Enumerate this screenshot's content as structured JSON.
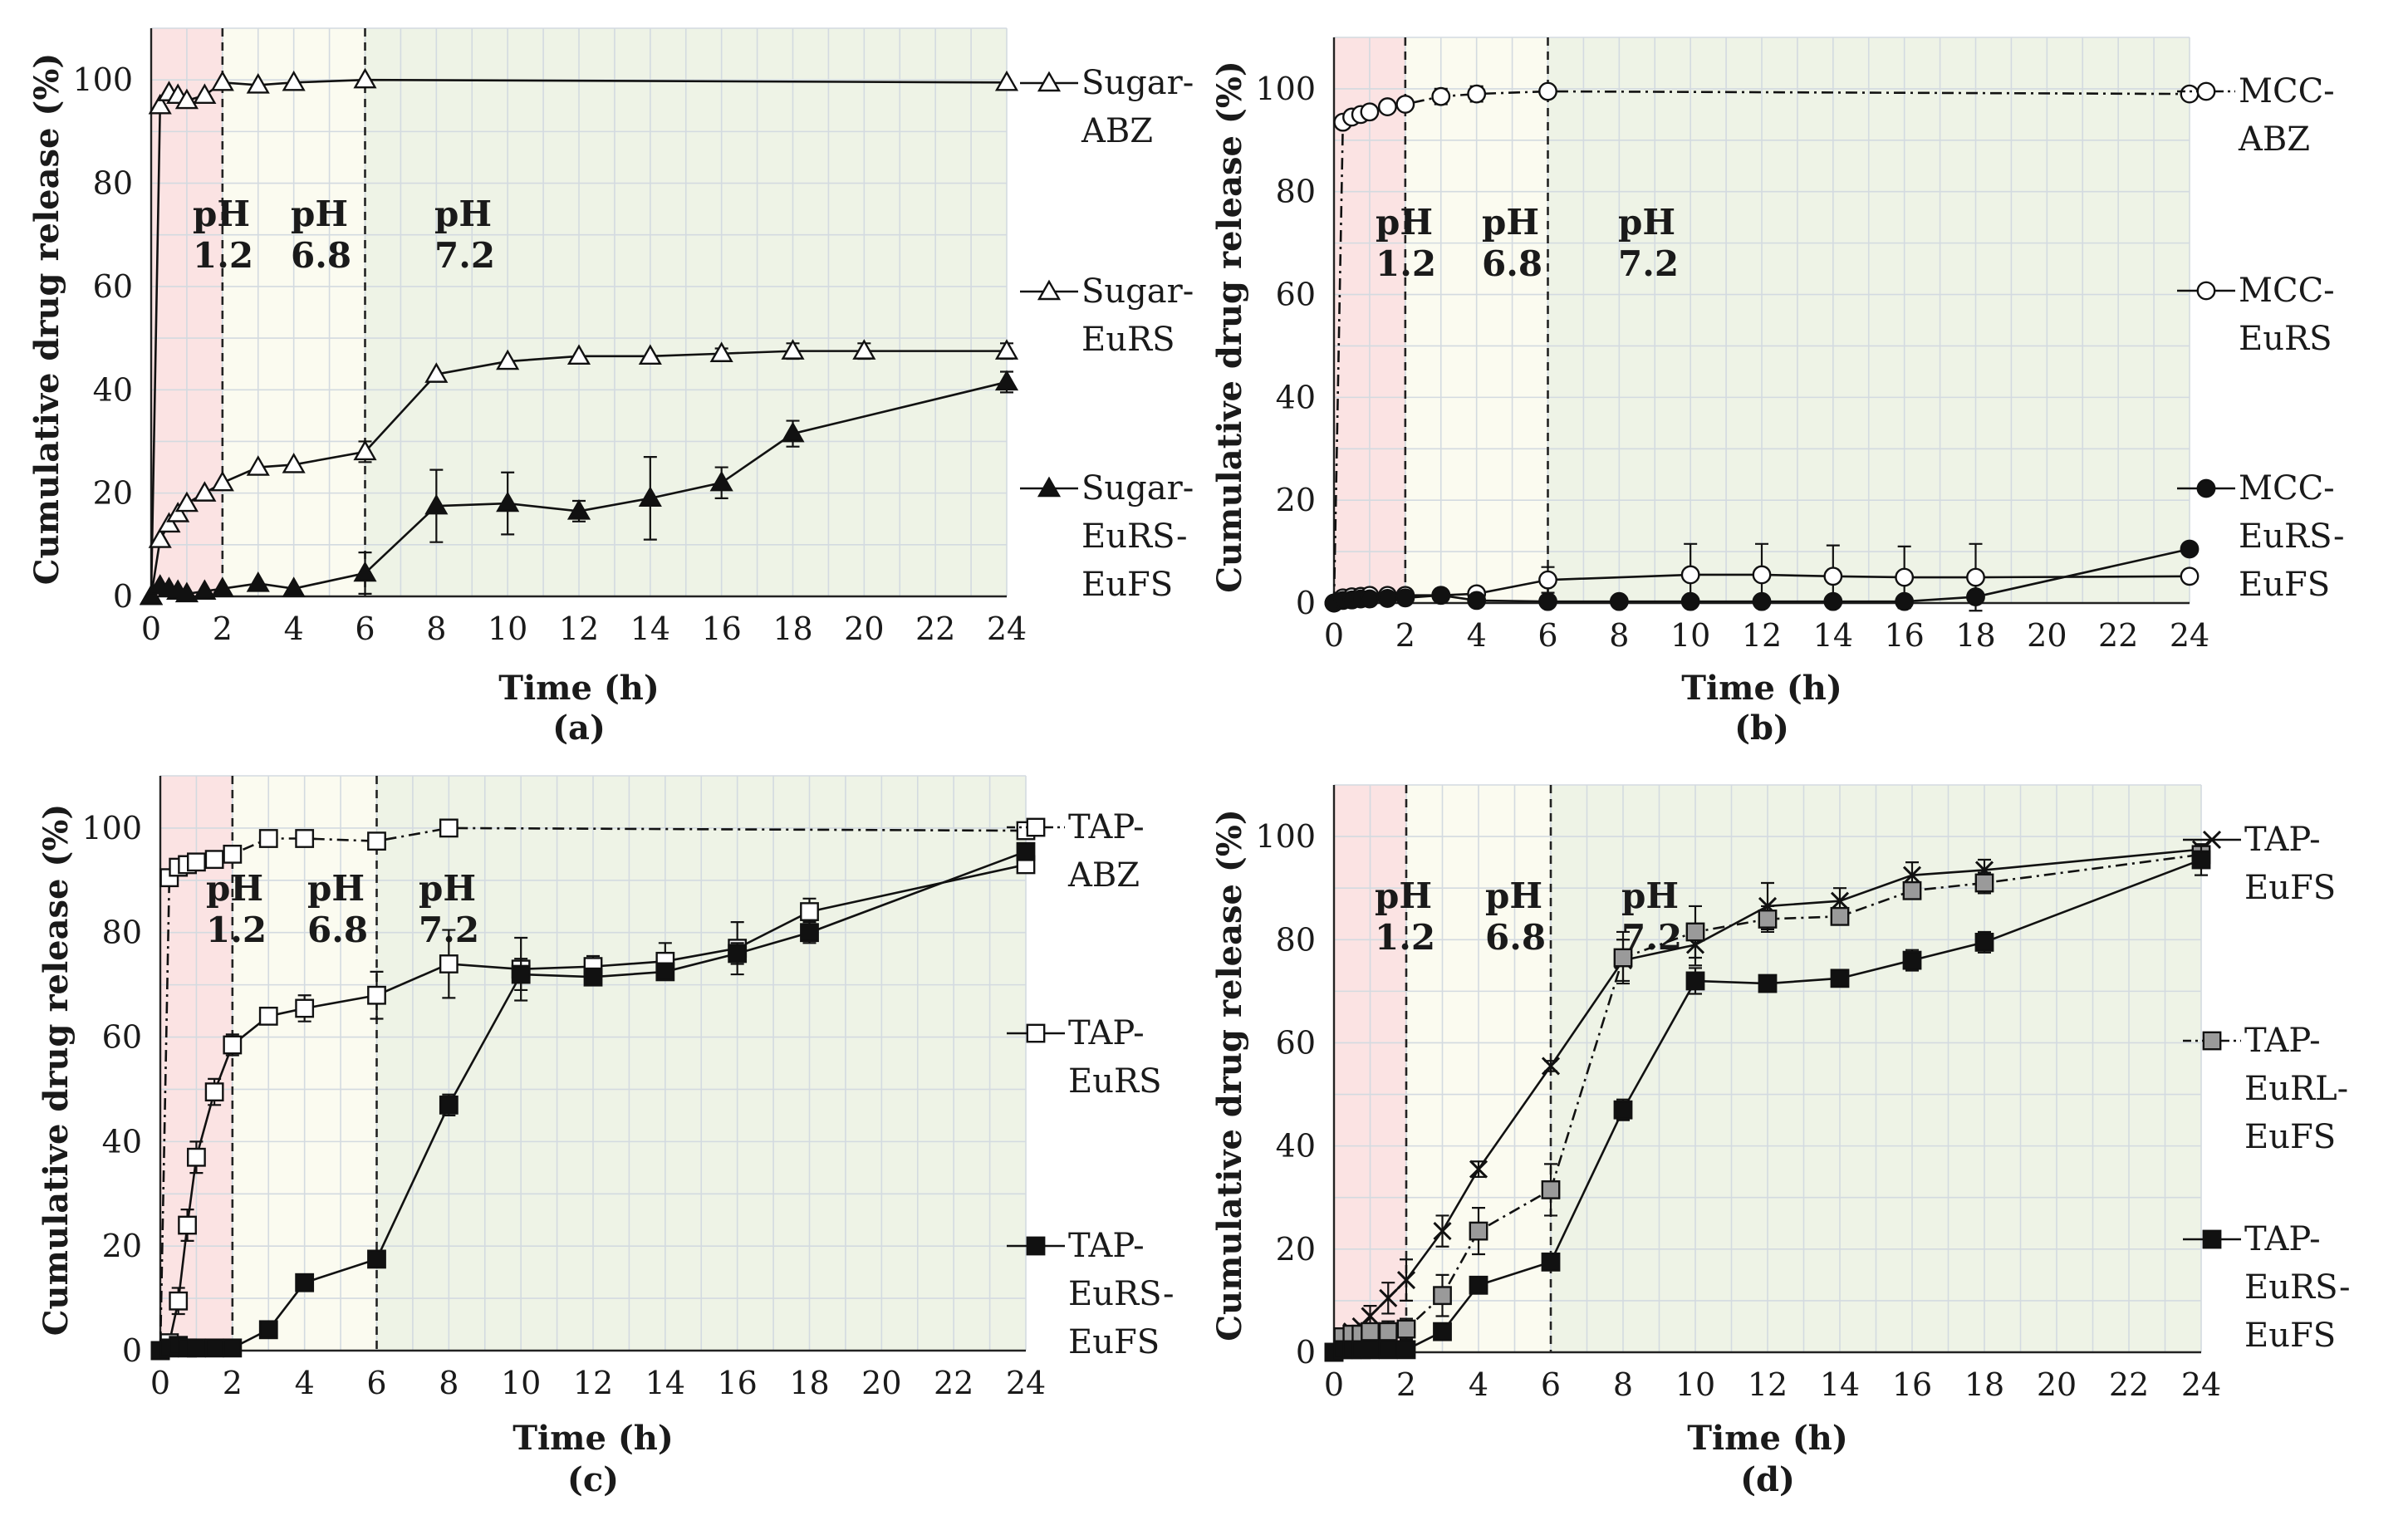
{
  "figure": {
    "colors": {
      "acid": "#fbe3e3",
      "mid": "#fbfbf0",
      "late": "#eef3e6",
      "grid": "#d3dae0",
      "axis": "#222222",
      "series_black": "#111111",
      "series_gray": "#9a9a9a"
    }
  },
  "chart_data": [
    {
      "type": "line",
      "panel_label": "(a)",
      "xlabel": "Time (h)",
      "ylabel": "Cumulative drug release (%)",
      "xlim": [
        0,
        24
      ],
      "ylim": [
        0,
        110
      ],
      "xticks": [
        0,
        2,
        4,
        6,
        8,
        10,
        12,
        14,
        16,
        18,
        20,
        22,
        24
      ],
      "yticks": [
        0,
        20,
        40,
        60,
        80,
        100
      ],
      "ph_regions": [
        {
          "label_top": "pH",
          "label_bottom": "1.2",
          "from": 0,
          "to": 2,
          "color_key": "acid"
        },
        {
          "label_top": "pH",
          "label_bottom": "6.8",
          "from": 2,
          "to": 6,
          "color_key": "mid"
        },
        {
          "label_top": "pH",
          "label_bottom": "7.2",
          "from": 6,
          "to": 24,
          "color_key": "late"
        }
      ],
      "series": [
        {
          "legend": [
            "Sugar-",
            "ABZ"
          ],
          "marker": "triangle-open",
          "line": "solid",
          "x": [
            0,
            0.25,
            0.5,
            0.75,
            1,
            1.5,
            2,
            3,
            4,
            6,
            24
          ],
          "y": [
            0,
            95,
            97.5,
            97,
            96,
            97,
            99.5,
            99,
            99.5,
            100,
            99.5
          ],
          "err": [
            0,
            0,
            0,
            0,
            0,
            0,
            0,
            0,
            0,
            0,
            0
          ]
        },
        {
          "legend": [
            "Sugar-",
            "EuRS"
          ],
          "marker": "triangle-open",
          "line": "solid",
          "x": [
            0,
            0.25,
            0.5,
            0.75,
            1,
            1.5,
            2,
            3,
            4,
            6,
            8,
            10,
            12,
            14,
            16,
            18,
            20,
            24
          ],
          "y": [
            0,
            11,
            14,
            16,
            18,
            20,
            22,
            25,
            25.5,
            28,
            43,
            45.5,
            46.5,
            46.5,
            47,
            47.5,
            47.5,
            47.5
          ],
          "err": [
            0,
            0,
            0,
            0,
            0,
            0,
            0,
            0,
            0,
            2,
            0,
            0,
            0,
            0,
            1,
            1.5,
            1.5,
            1.5
          ]
        },
        {
          "legend": [
            "Sugar-",
            "EuRS-",
            "EuFS"
          ],
          "marker": "triangle-filled",
          "line": "solid",
          "x": [
            0,
            0.25,
            0.5,
            0.75,
            1,
            1.5,
            2,
            3,
            4,
            6,
            8,
            10,
            12,
            14,
            16,
            18,
            24
          ],
          "y": [
            0,
            2,
            1.5,
            1,
            0.5,
            1,
            1.5,
            2.5,
            1.5,
            4.5,
            17.5,
            18,
            16.5,
            19,
            22,
            31.5,
            41.5
          ],
          "err": [
            0,
            0,
            0,
            0,
            0,
            0,
            0,
            0,
            0,
            4,
            7,
            6,
            2,
            8,
            3,
            2.5,
            2
          ]
        }
      ]
    },
    {
      "type": "line",
      "panel_label": "(b)",
      "xlabel": "Time (h)",
      "ylabel": "Cumulative drug release (%)",
      "xlim": [
        0,
        24
      ],
      "ylim": [
        0,
        110
      ],
      "xticks": [
        0,
        2,
        4,
        6,
        8,
        10,
        12,
        14,
        16,
        18,
        20,
        22,
        24
      ],
      "yticks": [
        0,
        20,
        40,
        60,
        80,
        100
      ],
      "ph_regions": [
        {
          "label_top": "pH",
          "label_bottom": "1.2",
          "from": 0,
          "to": 2,
          "color_key": "acid"
        },
        {
          "label_top": "pH",
          "label_bottom": "6.8",
          "from": 2,
          "to": 6,
          "color_key": "mid"
        },
        {
          "label_top": "pH",
          "label_bottom": "7.2",
          "from": 6,
          "to": 24,
          "color_key": "late"
        }
      ],
      "series": [
        {
          "legend": [
            "MCC-",
            "ABZ"
          ],
          "marker": "circle-open",
          "line": "dashdot",
          "x": [
            0,
            0.25,
            0.5,
            0.75,
            1,
            1.5,
            2,
            3,
            4,
            6,
            24
          ],
          "y": [
            0,
            93.5,
            94.5,
            95,
            95.5,
            96.5,
            97,
            98.5,
            99,
            99.5,
            99
          ],
          "err": [
            0,
            0,
            0,
            0,
            0,
            0,
            0,
            1.5,
            1.5,
            0,
            0
          ]
        },
        {
          "legend": [
            "MCC-",
            "EuRS"
          ],
          "marker": "circle-open",
          "line": "solid",
          "x": [
            0,
            0.25,
            0.5,
            0.75,
            1,
            1.5,
            2,
            3,
            4,
            6,
            10,
            12,
            14,
            16,
            18,
            24
          ],
          "y": [
            0,
            1,
            1.2,
            1.3,
            1.5,
            1.5,
            1.5,
            1.5,
            1.8,
            4.5,
            5.5,
            5.5,
            5.2,
            5,
            5,
            5.2
          ],
          "err": [
            0,
            0,
            0,
            0,
            0,
            0,
            0,
            0,
            0,
            2.5,
            6,
            6,
            6,
            6,
            6.5,
            0
          ]
        },
        {
          "legend": [
            "MCC-",
            "EuRS-",
            "EuFS"
          ],
          "marker": "circle-filled",
          "line": "solid",
          "x": [
            0,
            0.25,
            0.5,
            0.75,
            1,
            1.5,
            2,
            3,
            4,
            6,
            8,
            10,
            12,
            14,
            16,
            18,
            24
          ],
          "y": [
            0,
            0.5,
            0.6,
            0.8,
            0.8,
            0.9,
            1,
            1.5,
            0.5,
            0.3,
            0.3,
            0.3,
            0.3,
            0.3,
            0.3,
            1.2,
            10.5
          ],
          "err": [
            0,
            0,
            0,
            0,
            0,
            0,
            0,
            0,
            0,
            0,
            0,
            0,
            0,
            0,
            0,
            0,
            0
          ]
        }
      ]
    },
    {
      "type": "line",
      "panel_label": "(c)",
      "xlabel": "Time (h)",
      "ylabel": "Cumulative drug release (%)",
      "xlim": [
        0,
        24
      ],
      "ylim": [
        0,
        110
      ],
      "xticks": [
        0,
        2,
        4,
        6,
        8,
        10,
        12,
        14,
        16,
        18,
        20,
        22,
        24
      ],
      "yticks": [
        0,
        20,
        40,
        60,
        80,
        100
      ],
      "ph_regions": [
        {
          "label_top": "pH",
          "label_bottom": "1.2",
          "from": 0,
          "to": 2,
          "color_key": "acid"
        },
        {
          "label_top": "pH",
          "label_bottom": "6.8",
          "from": 2,
          "to": 6,
          "color_key": "mid"
        },
        {
          "label_top": "pH",
          "label_bottom": "7.2",
          "from": 6,
          "to": 24,
          "color_key": "late"
        }
      ],
      "series": [
        {
          "legend": [
            "TAP-",
            "ABZ"
          ],
          "marker": "square-open",
          "line": "dashdot",
          "x": [
            0,
            0.25,
            0.5,
            0.75,
            1,
            1.5,
            2,
            3,
            4,
            6,
            8,
            24
          ],
          "y": [
            0,
            90.5,
            92.5,
            93,
            93.5,
            94,
            95,
            98,
            98,
            97.5,
            100,
            99.5
          ],
          "err": [
            0,
            0,
            0,
            0,
            0,
            0,
            0,
            0,
            0,
            0,
            0,
            0
          ]
        },
        {
          "legend": [
            "TAP-",
            "EuRS"
          ],
          "marker": "square-open",
          "line": "solid",
          "x": [
            0,
            0.25,
            0.5,
            0.75,
            1,
            1.5,
            2,
            3,
            4,
            6,
            8,
            10,
            12,
            14,
            16,
            18,
            24
          ],
          "y": [
            0,
            1.5,
            9.5,
            24,
            37,
            49.5,
            58.5,
            64,
            65.5,
            68,
            74,
            73,
            73.5,
            74.5,
            77,
            84,
            93
          ],
          "err": [
            0,
            0,
            2.5,
            3,
            3,
            2.5,
            2,
            0,
            2.5,
            4.5,
            6.5,
            6,
            2,
            3.5,
            5,
            2.5,
            0
          ]
        },
        {
          "legend": [
            "TAP-",
            "EuRS-",
            "EuFS"
          ],
          "marker": "square-filled",
          "line": "solid",
          "x": [
            0,
            0.25,
            0.5,
            0.75,
            1,
            1.5,
            2,
            3,
            4,
            6,
            8,
            10,
            12,
            14,
            16,
            18,
            24
          ],
          "y": [
            0,
            0.5,
            1,
            0.5,
            0.5,
            0.5,
            0.5,
            4,
            13,
            17.5,
            47,
            72,
            71.5,
            72.5,
            76,
            80,
            95.5
          ],
          "err": [
            0,
            0,
            0,
            0,
            0,
            0,
            0,
            0,
            0,
            0,
            2,
            3,
            0,
            0,
            2,
            2,
            0
          ]
        }
      ]
    },
    {
      "type": "line",
      "panel_label": "(d)",
      "xlabel": "Time (h)",
      "ylabel": "Cumulative drug release (%)",
      "xlim": [
        0,
        24
      ],
      "ylim": [
        0,
        110
      ],
      "xticks": [
        0,
        2,
        4,
        6,
        8,
        10,
        12,
        14,
        16,
        18,
        20,
        22,
        24
      ],
      "yticks": [
        0,
        20,
        40,
        60,
        80,
        100
      ],
      "ph_regions": [
        {
          "label_top": "pH",
          "label_bottom": "1.2",
          "from": 0,
          "to": 2,
          "color_key": "acid"
        },
        {
          "label_top": "pH",
          "label_bottom": "6.8",
          "from": 2,
          "to": 6,
          "color_key": "mid"
        },
        {
          "label_top": "pH",
          "label_bottom": "7.2",
          "from": 6,
          "to": 24,
          "color_key": "late"
        }
      ],
      "series": [
        {
          "legend": [
            "TAP-",
            "EuFS"
          ],
          "marker": "cross",
          "line": "solid",
          "x": [
            0,
            0.25,
            0.5,
            0.75,
            1,
            1.5,
            2,
            3,
            4,
            6,
            8,
            10,
            12,
            14,
            16,
            18,
            24
          ],
          "y": [
            0,
            3,
            4,
            5,
            7,
            10.5,
            14,
            23.5,
            35.5,
            55.5,
            76,
            79,
            86.5,
            87.5,
            92.5,
            93.5,
            97.5
          ],
          "err": [
            0,
            0,
            0,
            0,
            2,
            3,
            4,
            3,
            1.5,
            1,
            4,
            4,
            4.5,
            2.5,
            2.5,
            2,
            1
          ]
        },
        {
          "legend": [
            "TAP-",
            "EuRL-",
            "EuFS"
          ],
          "marker": "square-gray",
          "line": "dashdot",
          "x": [
            0,
            0.25,
            0.5,
            0.75,
            1,
            1.5,
            2,
            3,
            4,
            6,
            8,
            10,
            12,
            14,
            16,
            18,
            24
          ],
          "y": [
            0,
            3,
            3.5,
            3.5,
            4,
            4,
            4.5,
            11,
            23.5,
            31.5,
            76.5,
            81.5,
            84,
            84.5,
            89.5,
            91,
            96.5
          ],
          "err": [
            0,
            1,
            1.5,
            1,
            1,
            2,
            2,
            4,
            4.5,
            5,
            5,
            5,
            2.5,
            1,
            1.5,
            2,
            1
          ]
        },
        {
          "legend": [
            "TAP-",
            "EuRS-",
            "EuFS"
          ],
          "marker": "square-filled",
          "line": "solid",
          "x": [
            0,
            0.25,
            0.5,
            0.75,
            1,
            1.5,
            2,
            3,
            4,
            6,
            8,
            10,
            12,
            14,
            16,
            18,
            24
          ],
          "y": [
            0,
            0.5,
            0.5,
            0.5,
            0.5,
            0.5,
            0.5,
            4,
            13,
            17.5,
            47,
            72,
            71.5,
            72.5,
            76,
            79.5,
            95.5
          ],
          "err": [
            0,
            0,
            0,
            0,
            0,
            0,
            0,
            0,
            0,
            0,
            2,
            2.5,
            1,
            1,
            2,
            2,
            3
          ]
        }
      ]
    }
  ]
}
